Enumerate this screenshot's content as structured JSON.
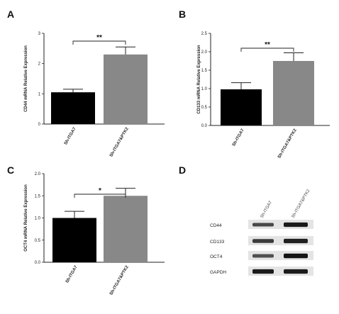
{
  "panels": [
    {
      "letter": "A"
    },
    {
      "letter": "B"
    },
    {
      "letter": "C"
    },
    {
      "letter": "D"
    }
  ],
  "chart_data": [
    {
      "type": "bar",
      "panel": "A",
      "categories": [
        "Sh-ITGA7",
        "Sh-ITGA7&PTK2"
      ],
      "values": [
        1.05,
        2.3
      ],
      "errors": [
        0.1,
        0.25
      ],
      "ylabel": "CD44 mRNA Relative Expression",
      "ylim": [
        0,
        3
      ],
      "yticks": [
        "0",
        "1",
        "2",
        "3"
      ],
      "significance": "**",
      "colors": [
        "#000000",
        "#888888"
      ]
    },
    {
      "type": "bar",
      "panel": "B",
      "categories": [
        "Sh-ITGA7",
        "Sh-ITGA7&PTK2"
      ],
      "values": [
        0.98,
        1.75
      ],
      "errors": [
        0.18,
        0.22
      ],
      "ylabel": "CD133 mRNA Relative Expression",
      "ylim": [
        0,
        2.5
      ],
      "yticks": [
        "0.0",
        "0.5",
        "1.0",
        "1.5",
        "2.0",
        "2.5"
      ],
      "significance": "**",
      "colors": [
        "#000000",
        "#888888"
      ]
    },
    {
      "type": "bar",
      "panel": "C",
      "categories": [
        "Sh-ITGA7",
        "Sh-ITGA7&PTK2"
      ],
      "values": [
        1.0,
        1.5
      ],
      "errors": [
        0.15,
        0.17
      ],
      "ylabel": "OCT4 mRNA Relative Expression",
      "ylim": [
        0,
        2
      ],
      "yticks": [
        "0.0",
        "0.5",
        "1.0",
        "1.5",
        "2.0"
      ],
      "significance": "*",
      "colors": [
        "#000000",
        "#888888"
      ]
    }
  ],
  "western_blot": {
    "columns": [
      "Sh-ITGA7",
      "Sh-ITGA7&PTK2"
    ],
    "rows": [
      {
        "label": "CD44",
        "intensity": [
          0.6,
          0.95
        ]
      },
      {
        "label": "CD133",
        "intensity": [
          0.7,
          0.9
        ]
      },
      {
        "label": "OCT4",
        "intensity": [
          0.55,
          1.0
        ]
      },
      {
        "label": "GAPDH",
        "intensity": [
          0.95,
          0.95
        ]
      }
    ]
  }
}
